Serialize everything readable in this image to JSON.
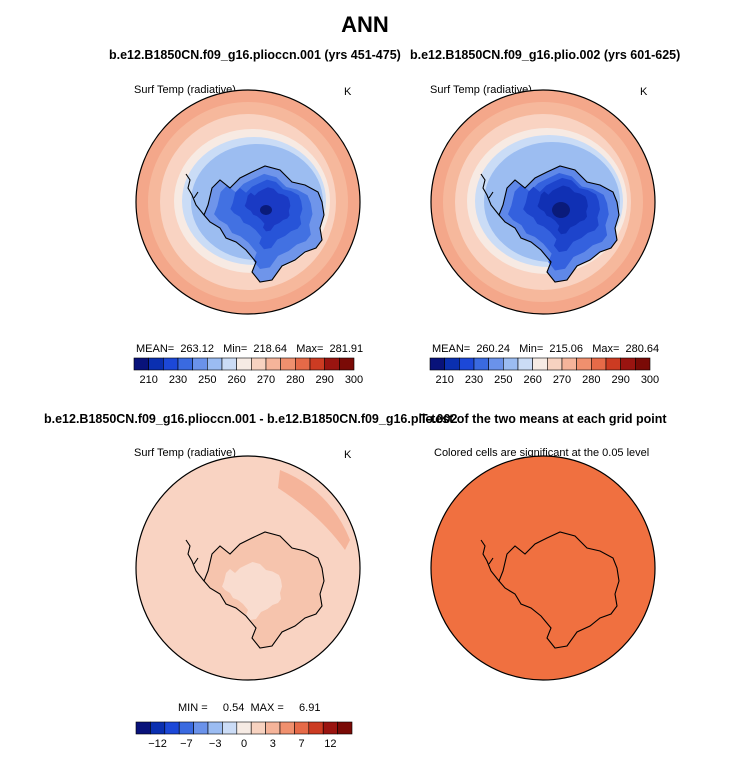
{
  "title": "ANN",
  "panels": [
    {
      "title": "b.e12.B1850CN.f09_g16.plioccn.001 (yrs 451-475)",
      "subtitle": "Surf Temp (radiative)",
      "units": "K",
      "stats": "MEAN=  263.12   Min=  218.64   Max=  281.91"
    },
    {
      "title": "b.e12.B1850CN.f09_g16.plio.002 (yrs 601-625)",
      "subtitle": "Surf Temp (radiative)",
      "units": "K",
      "stats": "MEAN=  260.24   Min=  215.06   Max=  280.64"
    },
    {
      "title": "b.e12.B1850CN.f09_g16.plioccn.001 - b.e12.B1850CN.f09_g16.plio.002",
      "subtitle": "Surf Temp (radiative)",
      "units": "K",
      "stats": "MIN =     0.54  MAX =     6.91"
    },
    {
      "title": "T-test of the two means at each grid point",
      "subtitle": "Colored cells are significant at the 0.05 level"
    }
  ],
  "chart_data": [
    {
      "type": "heatmap",
      "projection": "south-polar-stereographic",
      "field": "Surf Temp (radiative)",
      "units": "K",
      "mean": 263.12,
      "min": 218.64,
      "max": 281.91,
      "colorbar_labels": [
        "210",
        "230",
        "250",
        "260",
        "270",
        "280",
        "290",
        "300"
      ]
    },
    {
      "type": "heatmap",
      "projection": "south-polar-stereographic",
      "field": "Surf Temp (radiative)",
      "units": "K",
      "mean": 260.24,
      "min": 215.06,
      "max": 280.64,
      "colorbar_labels": [
        "210",
        "230",
        "250",
        "260",
        "270",
        "280",
        "290",
        "300"
      ]
    },
    {
      "type": "heatmap",
      "projection": "south-polar-stereographic",
      "field": "Surf Temp (radiative) difference",
      "units": "K",
      "min": 0.54,
      "max": 6.91,
      "colorbar_labels": [
        "−12",
        "−7",
        "−3",
        "0",
        "3",
        "7",
        "12"
      ]
    },
    {
      "type": "heatmap",
      "projection": "south-polar-stereographic",
      "field": "t-test significance",
      "significance_level": 0.05
    }
  ],
  "colors": {
    "scale": [
      "#08127a",
      "#0a2fb0",
      "#1c48d8",
      "#3a6ae0",
      "#6a92ea",
      "#9bbcf2",
      "#cbdcf6",
      "#f6ebe4",
      "#f7d2c0",
      "#f5b49a",
      "#f0906e",
      "#e66a48",
      "#cc3b22",
      "#9a1410",
      "#7a0a06"
    ],
    "ttest_fill": "#f07040"
  }
}
